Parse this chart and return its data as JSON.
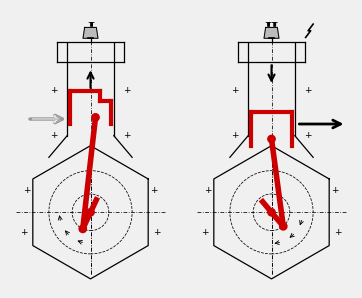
{
  "bg_color": "#f0f0f0",
  "line_color": "#000000",
  "red_color": "#cc0000",
  "gray_color": "#999999",
  "white_color": "#ffffff"
}
